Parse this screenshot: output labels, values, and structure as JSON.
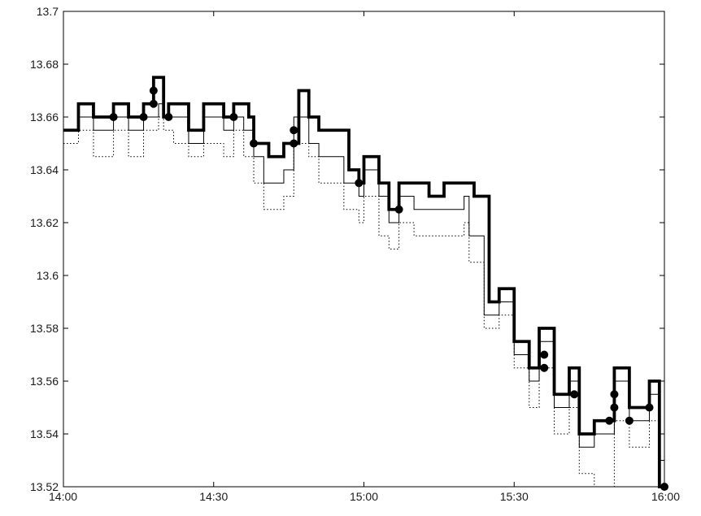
{
  "chart_data": {
    "type": "line",
    "title": "",
    "xlabel": "",
    "ylabel": "",
    "xlim": [
      "14:00",
      "16:00"
    ],
    "ylim": [
      13.52,
      13.7
    ],
    "grid": false,
    "xticks": [
      "14:00",
      "14:30",
      "15:00",
      "15:30",
      "16:00"
    ],
    "yticks": [
      "13.52",
      "13.54",
      "13.56",
      "13.58",
      "13.6",
      "13.62",
      "13.64",
      "13.66",
      "13.68",
      "13.7"
    ],
    "series": [
      {
        "style": "thick-step",
        "points": [
          [
            "14:00",
            13.655
          ],
          [
            "14:03",
            13.665
          ],
          [
            "14:06",
            13.66
          ],
          [
            "14:10",
            13.665
          ],
          [
            "14:13",
            13.66
          ],
          [
            "14:16",
            13.665
          ],
          [
            "14:18",
            13.675
          ],
          [
            "14:20",
            13.66
          ],
          [
            "14:21",
            13.665
          ],
          [
            "14:25",
            13.655
          ],
          [
            "14:28",
            13.665
          ],
          [
            "14:32",
            13.66
          ],
          [
            "14:34",
            13.665
          ],
          [
            "14:37",
            13.66
          ],
          [
            "14:38",
            13.65
          ],
          [
            "14:41",
            13.645
          ],
          [
            "14:44",
            13.65
          ],
          [
            "14:47",
            13.67
          ],
          [
            "14:49",
            13.66
          ],
          [
            "14:51",
            13.655
          ],
          [
            "14:57",
            13.64
          ],
          [
            "14:59",
            13.635
          ],
          [
            "15:00",
            13.645
          ],
          [
            "15:03",
            13.635
          ],
          [
            "15:05",
            13.625
          ],
          [
            "15:07",
            13.635
          ],
          [
            "15:13",
            13.63
          ],
          [
            "15:16",
            13.635
          ],
          [
            "15:22",
            13.63
          ],
          [
            "15:25",
            13.59
          ],
          [
            "15:27",
            13.595
          ],
          [
            "15:30",
            13.575
          ],
          [
            "15:33",
            13.565
          ],
          [
            "15:35",
            13.58
          ],
          [
            "15:38",
            13.555
          ],
          [
            "15:41",
            13.565
          ],
          [
            "15:43",
            13.54
          ],
          [
            "15:46",
            13.545
          ],
          [
            "15:50",
            13.565
          ],
          [
            "15:53",
            13.55
          ],
          [
            "15:57",
            13.56
          ],
          [
            "15:59",
            13.52
          ]
        ]
      },
      {
        "style": "thin-step",
        "points": [
          [
            "14:00",
            13.655
          ],
          [
            "14:03",
            13.66
          ],
          [
            "14:06",
            13.655
          ],
          [
            "14:10",
            13.66
          ],
          [
            "14:13",
            13.655
          ],
          [
            "14:16",
            13.66
          ],
          [
            "14:19",
            13.665
          ],
          [
            "14:20",
            13.66
          ],
          [
            "14:22",
            13.66
          ],
          [
            "14:25",
            13.65
          ],
          [
            "14:28",
            13.66
          ],
          [
            "14:32",
            13.655
          ],
          [
            "14:34",
            13.66
          ],
          [
            "14:36",
            13.655
          ],
          [
            "14:38",
            13.645
          ],
          [
            "14:40",
            13.635
          ],
          [
            "14:44",
            13.64
          ],
          [
            "14:46",
            13.66
          ],
          [
            "14:49",
            13.65
          ],
          [
            "14:51",
            13.645
          ],
          [
            "14:56",
            13.635
          ],
          [
            "14:59",
            13.63
          ],
          [
            "15:00",
            13.64
          ],
          [
            "15:03",
            13.63
          ],
          [
            "15:05",
            13.62
          ],
          [
            "15:07",
            13.63
          ],
          [
            "15:10",
            13.625
          ],
          [
            "15:20",
            13.63
          ],
          [
            "15:21",
            13.615
          ],
          [
            "15:24",
            13.585
          ],
          [
            "15:27",
            13.59
          ],
          [
            "15:30",
            13.57
          ],
          [
            "15:33",
            13.56
          ],
          [
            "15:35",
            13.575
          ],
          [
            "15:38",
            13.55
          ],
          [
            "15:41",
            13.56
          ],
          [
            "15:43",
            13.535
          ],
          [
            "15:46",
            13.54
          ],
          [
            "15:50",
            13.56
          ],
          [
            "15:53",
            13.545
          ],
          [
            "15:57",
            13.555
          ],
          [
            "15:59",
            13.53
          ]
        ]
      },
      {
        "style": "dotted-step",
        "points": [
          [
            "14:00",
            13.65
          ],
          [
            "14:03",
            13.655
          ],
          [
            "14:06",
            13.645
          ],
          [
            "14:10",
            13.655
          ],
          [
            "14:13",
            13.645
          ],
          [
            "14:16",
            13.655
          ],
          [
            "14:19",
            13.66
          ],
          [
            "14:20",
            13.655
          ],
          [
            "14:22",
            13.65
          ],
          [
            "14:25",
            13.645
          ],
          [
            "14:28",
            13.65
          ],
          [
            "14:32",
            13.645
          ],
          [
            "14:34",
            13.655
          ],
          [
            "14:36",
            13.645
          ],
          [
            "14:38",
            13.635
          ],
          [
            "14:40",
            13.625
          ],
          [
            "14:44",
            13.63
          ],
          [
            "14:46",
            13.65
          ],
          [
            "14:49",
            13.645
          ],
          [
            "14:51",
            13.635
          ],
          [
            "14:56",
            13.625
          ],
          [
            "14:59",
            13.62
          ],
          [
            "15:00",
            13.63
          ],
          [
            "15:03",
            13.615
          ],
          [
            "15:05",
            13.61
          ],
          [
            "15:07",
            13.62
          ],
          [
            "15:10",
            13.615
          ],
          [
            "15:20",
            13.62
          ],
          [
            "15:21",
            13.605
          ],
          [
            "15:24",
            13.58
          ],
          [
            "15:27",
            13.585
          ],
          [
            "15:30",
            13.565
          ],
          [
            "15:33",
            13.55
          ],
          [
            "15:35",
            13.565
          ],
          [
            "15:38",
            13.54
          ],
          [
            "15:41",
            13.55
          ],
          [
            "15:43",
            13.525
          ],
          [
            "15:46",
            13.52
          ],
          [
            "15:50",
            13.545
          ],
          [
            "15:53",
            13.535
          ],
          [
            "15:57",
            13.545
          ],
          [
            "15:59",
            13.52
          ]
        ]
      }
    ],
    "markers": [
      [
        "14:10",
        13.66
      ],
      [
        "14:16",
        13.66
      ],
      [
        "14:18",
        13.665
      ],
      [
        "14:18",
        13.67
      ],
      [
        "14:21",
        13.66
      ],
      [
        "14:34",
        13.66
      ],
      [
        "14:38",
        13.65
      ],
      [
        "14:46",
        13.65
      ],
      [
        "14:46",
        13.655
      ],
      [
        "14:59",
        13.635
      ],
      [
        "15:07",
        13.625
      ],
      [
        "15:36",
        13.57
      ],
      [
        "15:36",
        13.565
      ],
      [
        "15:42",
        13.555
      ],
      [
        "15:49",
        13.545
      ],
      [
        "15:50",
        13.55
      ],
      [
        "15:50",
        13.555
      ],
      [
        "15:53",
        13.545
      ],
      [
        "15:57",
        13.55
      ],
      [
        "16:00",
        13.52
      ]
    ]
  }
}
